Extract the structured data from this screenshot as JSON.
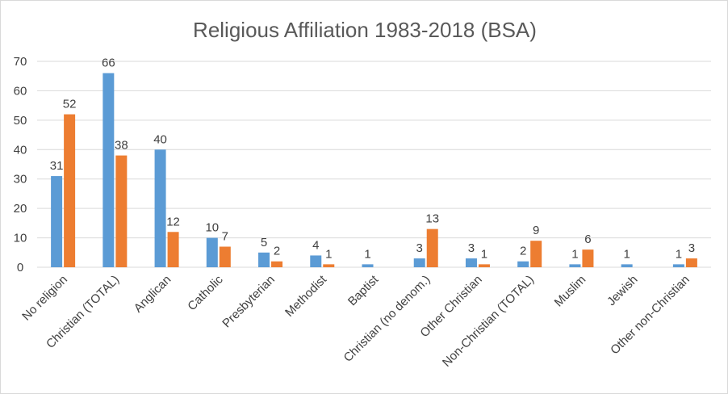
{
  "chart_data": {
    "type": "bar",
    "title": "Religious Affiliation 1983-2018 (BSA)",
    "xlabel": "",
    "ylabel": "",
    "ylim": [
      0,
      70
    ],
    "yticks": [
      0,
      10,
      20,
      30,
      40,
      50,
      60,
      70
    ],
    "grid": true,
    "legend": "none",
    "categories": [
      "No religion",
      "Christian (TOTAL)",
      "Anglican",
      "Catholic",
      "Presbyterian",
      "Methodist",
      "Baptist",
      "Christian (no denom.)",
      "Other Christian",
      "Non-Christian (TOTAL)",
      "Muslim",
      "Jewish",
      "Other non-Christian"
    ],
    "series": [
      {
        "color": "#5b9bd5",
        "values": [
          31,
          66,
          40,
          10,
          5,
          4,
          1,
          3,
          3,
          2,
          1,
          1,
          1
        ]
      },
      {
        "color": "#ed7d31",
        "values": [
          52,
          38,
          12,
          7,
          2,
          1,
          null,
          13,
          1,
          9,
          6,
          null,
          3
        ]
      }
    ]
  }
}
